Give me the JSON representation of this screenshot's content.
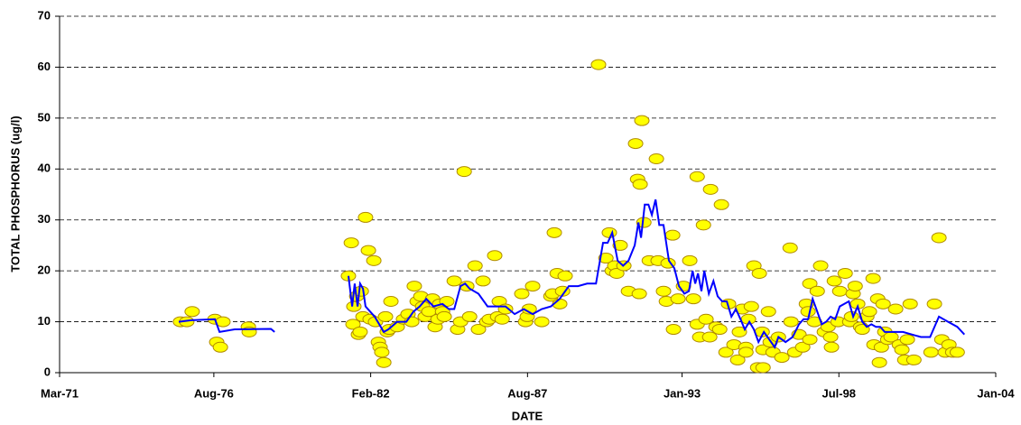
{
  "chart_data": {
    "type": "scatter",
    "x_label": "DATE",
    "y_label": "TOTAL PHOSPHORUS (ug/l)",
    "xlim": [
      1971.17,
      2004.0
    ],
    "xticks": [
      {
        "value": 1971.17,
        "label": "Mar-71"
      },
      {
        "value": 1976.58,
        "label": "Aug-76"
      },
      {
        "value": 1982.08,
        "label": "Feb-82"
      },
      {
        "value": 1987.58,
        "label": "Aug-87"
      },
      {
        "value": 1993.0,
        "label": "Jan-93"
      },
      {
        "value": 1998.5,
        "label": "Jul-98"
      },
      {
        "value": 2004.0,
        "label": "Jan-04"
      }
    ],
    "ylim": [
      0,
      70
    ],
    "yticks": [
      0,
      10,
      20,
      30,
      40,
      50,
      60,
      70
    ],
    "grid": true,
    "series": [
      {
        "mode": "markers",
        "color": "#ffff00",
        "edge": "#b08a00",
        "x": [
          1975.41,
          1975.63,
          1975.82,
          1976.62,
          1976.68,
          1976.81,
          1976.9,
          1977.79,
          1977.82,
          1981.3,
          1981.4,
          1981.49,
          1981.59,
          1981.46,
          1981.65,
          1981.75,
          1981.71,
          1981.81,
          1981.9,
          1982.0,
          1982.06,
          1982.19,
          1982.25,
          1982.35,
          1982.41,
          1982.47,
          1982.54,
          1982.6,
          1982.66,
          1982.79,
          1982.73,
          1983.01,
          1983.23,
          1983.39,
          1983.52,
          1983.61,
          1983.71,
          1983.84,
          1983.9,
          1983.99,
          1984.12,
          1984.25,
          1984.34,
          1984.44,
          1984.5,
          1984.6,
          1984.66,
          1984.75,
          1985.01,
          1985.13,
          1985.23,
          1985.36,
          1985.45,
          1985.55,
          1985.74,
          1985.86,
          1986.02,
          1986.15,
          1986.24,
          1986.43,
          1986.53,
          1986.59,
          1986.69,
          1986.81,
          1987.38,
          1987.51,
          1987.57,
          1987.64,
          1987.76,
          1988.08,
          1988.4,
          1988.46,
          1988.52,
          1988.62,
          1988.71,
          1988.81,
          1988.9,
          1990.07,
          1990.33,
          1990.45,
          1990.55,
          1990.64,
          1990.71,
          1990.83,
          1990.96,
          1991.12,
          1991.37,
          1991.44,
          1991.53,
          1991.5,
          1991.66,
          1991.59,
          1991.85,
          1992.1,
          1992.16,
          1992.35,
          1992.51,
          1992.45,
          1992.67,
          1992.7,
          1992.86,
          1993.05,
          1993.27,
          1993.4,
          1993.53,
          1993.53,
          1993.62,
          1993.75,
          1993.84,
          1994.0,
          1993.97,
          1994.19,
          1994.38,
          1994.32,
          1994.54,
          1994.63,
          1994.82,
          1994.95,
          1995.01,
          1995.11,
          1995.24,
          1995.33,
          1995.24,
          1995.43,
          1995.52,
          1995.65,
          1995.84,
          1995.71,
          1995.81,
          1995.84,
          1996.03,
          1996.09,
          1996.19,
          1996.38,
          1996.5,
          1996.79,
          1996.82,
          1996.95,
          1997.1,
          1997.23,
          1997.36,
          1997.42,
          1997.48,
          1997.48,
          1997.64,
          1997.74,
          1997.86,
          1997.99,
          1998.12,
          1998.24,
          1998.21,
          1998.34,
          1998.47,
          1998.53,
          1998.72,
          1998.88,
          1998.94,
          1999.0,
          1999.07,
          1999.16,
          1999.26,
          1999.32,
          1999.48,
          1999.57,
          1999.7,
          1999.73,
          1999.86,
          1999.92,
          1999.99,
          2000.05,
          2000.11,
          2000.21,
          2000.33,
          2000.49,
          2000.62,
          2000.71,
          2000.81,
          2000.9,
          2001.0,
          2001.13,
          2001.73,
          2001.85,
          2002.01,
          2002.11,
          2002.23,
          2002.36,
          2002.49,
          2002.65
        ],
        "values": [
          10,
          10,
          12,
          10.5,
          6,
          5,
          10,
          9,
          8,
          19,
          25.5,
          13,
          15,
          9.5,
          7.5,
          16,
          8,
          11,
          30.5,
          24,
          10.5,
          22,
          10,
          6,
          5,
          4,
          2,
          11,
          8,
          14,
          8.5,
          9,
          10.5,
          11.5,
          10,
          17,
          14,
          15,
          13,
          11,
          12,
          14.5,
          9,
          10.5,
          13.5,
          12,
          11,
          14,
          18,
          8.5,
          10,
          39.5,
          17,
          11,
          21,
          8.5,
          18,
          10,
          10.5,
          23,
          11,
          14,
          10.5,
          12.5,
          15.5,
          10,
          11,
          12.5,
          17,
          10,
          15,
          15.5,
          27.5,
          19.5,
          13.5,
          16,
          19,
          60.5,
          22.5,
          27.5,
          20,
          21,
          19.5,
          25,
          21,
          16,
          45,
          38,
          37,
          15.5,
          29.5,
          49.5,
          22,
          42,
          22,
          16,
          21.5,
          14,
          27,
          8.5,
          14.5,
          17,
          22,
          14.5,
          38.5,
          9.5,
          7,
          29,
          10.5,
          36,
          7,
          9,
          33,
          8.5,
          4,
          13.5,
          5.5,
          2.5,
          8,
          12.5,
          5,
          10.5,
          4,
          13,
          21,
          1,
          1,
          19.5,
          8,
          4.5,
          12,
          6,
          4,
          7,
          3,
          24.5,
          10,
          4,
          7.5,
          5,
          13.5,
          12,
          17.5,
          6.5,
          10,
          16,
          21,
          8,
          9,
          5,
          7,
          18,
          10,
          16,
          19.5,
          10,
          11,
          15.5,
          17,
          13.5,
          9,
          8.5,
          11,
          12,
          18.5,
          5.5,
          14.5,
          2,
          5,
          13.5,
          8,
          6.5,
          7,
          12.5,
          5.5,
          4.5,
          2.5,
          6.5,
          13.5,
          2.5,
          4,
          13.5,
          26.5,
          6.5,
          4,
          5.5,
          4,
          4
        ]
      },
      {
        "mode": "line",
        "color": "#0000ff",
        "x": [
          1975.35,
          1975.79,
          1976.62,
          1976.78,
          1977.31,
          1978.58,
          1978.71,
          1980.0,
          1981.3,
          1981.43,
          1981.52,
          1981.62,
          1981.71,
          1981.81,
          1981.9,
          1982.06,
          1982.22,
          1982.38,
          1982.54,
          1982.7,
          1983.01,
          1983.33,
          1983.58,
          1983.8,
          1984.03,
          1984.28,
          1984.6,
          1984.82,
          1985.01,
          1985.23,
          1985.39,
          1985.55,
          1985.86,
          1986.18,
          1986.5,
          1986.81,
          1987.13,
          1987.45,
          1987.76,
          1988.08,
          1988.4,
          1988.71,
          1989.03,
          1989.35,
          1989.67,
          1989.98,
          1990.23,
          1990.39,
          1990.55,
          1990.74,
          1990.93,
          1991.12,
          1991.34,
          1991.47,
          1991.56,
          1991.69,
          1991.82,
          1991.94,
          1992.07,
          1992.2,
          1992.35,
          1992.54,
          1992.73,
          1992.89,
          1993.08,
          1993.24,
          1993.37,
          1993.46,
          1993.56,
          1993.68,
          1993.78,
          1993.94,
          1994.1,
          1994.25,
          1994.41,
          1994.57,
          1994.73,
          1994.89,
          1995.05,
          1995.2,
          1995.36,
          1995.52,
          1995.68,
          1995.87,
          1996.06,
          1996.25,
          1996.38,
          1996.63,
          1996.88,
          1997.1,
          1997.26,
          1997.42,
          1997.58,
          1997.74,
          1997.9,
          1998.05,
          1998.21,
          1998.37,
          1998.53,
          1998.69,
          1998.85,
          1999.0,
          1999.16,
          1999.32,
          1999.48,
          1999.64,
          1999.8,
          1999.95,
          2000.11,
          2000.43,
          2000.75,
          2001.06,
          2001.38,
          2001.7,
          2002.01,
          2002.33,
          2002.65,
          2002.9
        ],
        "values": [
          10,
          10.3,
          10.5,
          8,
          8.5,
          8.6,
          8,
          null,
          19,
          13,
          17.5,
          13,
          17.5,
          16.5,
          13,
          12,
          11,
          9.5,
          8,
          8.5,
          10,
          10,
          12,
          13,
          14.5,
          13,
          13.5,
          12.5,
          12.5,
          17,
          17.5,
          16.5,
          15.5,
          13,
          13,
          13,
          11.5,
          12.5,
          11.5,
          12.5,
          13,
          14.5,
          17,
          17,
          17.5,
          17.5,
          25.5,
          25.5,
          27.5,
          22,
          21,
          22,
          25,
          29.5,
          26.5,
          33,
          33,
          31,
          34,
          29,
          29,
          22,
          20.5,
          17,
          15.5,
          16,
          20,
          17.5,
          19.5,
          16,
          20,
          15.5,
          18,
          15,
          14,
          14,
          11,
          12.5,
          10.5,
          8.5,
          10,
          8.5,
          6,
          8,
          6.5,
          5,
          7,
          6,
          7,
          9.5,
          10.5,
          10.5,
          14.5,
          12,
          9.5,
          10,
          11,
          10.5,
          13,
          13.5,
          14,
          11,
          13,
          10,
          9,
          9.5,
          9,
          9,
          8,
          8,
          8,
          7.5,
          7,
          7,
          11,
          10,
          9,
          7.5
        ]
      }
    ]
  }
}
